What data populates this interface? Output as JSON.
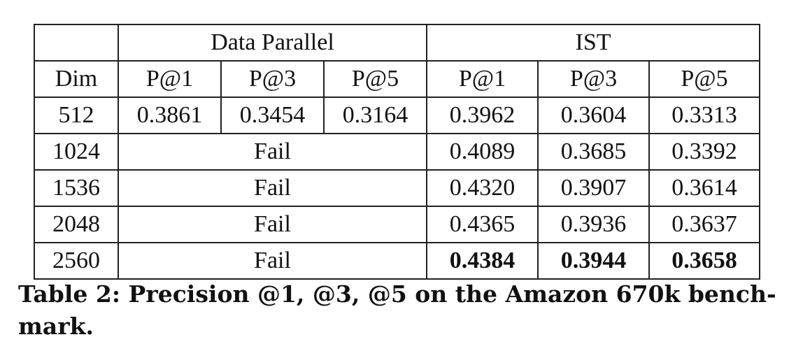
{
  "table": {
    "group_headers": {
      "blank": "",
      "data_parallel": "Data Parallel",
      "ist": "IST"
    },
    "column_headers": {
      "dim": "Dim",
      "dp_p1": "P@1",
      "dp_p3": "P@3",
      "dp_p5": "P@5",
      "ist_p1": "P@1",
      "ist_p3": "P@3",
      "ist_p5": "P@5"
    },
    "rows": [
      {
        "dim": "512",
        "dp_p1": "0.3861",
        "dp_p3": "0.3454",
        "dp_p5": "0.3164",
        "ist_p1": "0.3962",
        "ist_p3": "0.3604",
        "ist_p5": "0.3313"
      },
      {
        "dim": "1024",
        "dp": "Fail",
        "ist_p1": "0.4089",
        "ist_p3": "0.3685",
        "ist_p5": "0.3392"
      },
      {
        "dim": "1536",
        "dp": "Fail",
        "ist_p1": "0.4320",
        "ist_p3": "0.3907",
        "ist_p5": "0.3614"
      },
      {
        "dim": "2048",
        "dp": "Fail",
        "ist_p1": "0.4365",
        "ist_p3": "0.3936",
        "ist_p5": "0.3637"
      },
      {
        "dim": "2560",
        "dp": "Fail",
        "ist_p1": "0.4384",
        "ist_p3": "0.3944",
        "ist_p5": "0.3658"
      }
    ],
    "bold_row": "2560"
  },
  "caption": {
    "line1": "Table 2: Precision @1, @3, @5 on the Amazon 670k bench-",
    "line2": "mark."
  }
}
